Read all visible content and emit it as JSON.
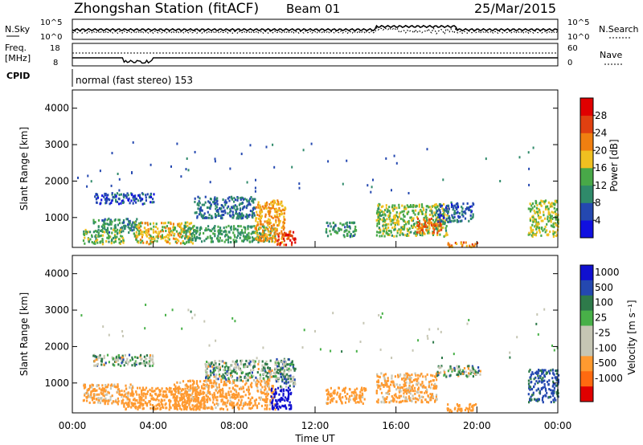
{
  "header": {
    "title": "Zhongshan Station (fitACF)",
    "beam": "Beam 01",
    "date": "25/Mar/2015"
  },
  "summary_panels": {
    "nsky_label": "N.Sky",
    "nsky_ticks": [
      "10^5",
      "10^0"
    ],
    "nsearch_label": "N.Search",
    "nsearch_ticks": [
      "10^5",
      "10^0"
    ],
    "freq_label_1": "Freq.",
    "freq_label_2": "[MHz]",
    "freq_ticks": [
      "18",
      "8"
    ],
    "nave_label": "Nave",
    "nave_ticks": [
      "60",
      "0"
    ],
    "cpid_label": "CPID",
    "cpid_text": "normal (fast stereo) 153"
  },
  "colors": {
    "power_scale": [
      "#1010e0",
      "#2448b0",
      "#2f8a6a",
      "#48a848",
      "#f0c020",
      "#f07f10",
      "#e04010",
      "#e00000"
    ],
    "velocity_scale": [
      "#e00000",
      "#ff6a10",
      "#ff9a30",
      "#c6c6b4",
      "#c6c6b4",
      "#48b048",
      "#2e7a4a",
      "#2448b0",
      "#1010d0"
    ]
  },
  "chart_data": [
    {
      "type": "heatmap",
      "panel": "power",
      "ylabel": "Slant Range [km]",
      "yticks": [
        "1000",
        "2000",
        "3000",
        "4000"
      ],
      "ylim": [
        180,
        4500
      ],
      "xlim": [
        0,
        24
      ],
      "colorbar_label": "Power [dB]",
      "colorbar_ticks": [
        "4",
        "8",
        "12",
        "16",
        "20",
        "24",
        "28"
      ],
      "regions": [
        {
          "t": [
            1.0,
            3.2
          ],
          "r": [
            620,
            1000
          ],
          "v": 10
        },
        {
          "t": [
            0.5,
            2.5
          ],
          "r": [
            300,
            700
          ],
          "v": 14
        },
        {
          "t": [
            3.0,
            6.0
          ],
          "r": [
            300,
            900
          ],
          "v": 18
        },
        {
          "t": [
            5.5,
            10.0
          ],
          "r": [
            350,
            800
          ],
          "v": 12
        },
        {
          "t": [
            6.0,
            9.0
          ],
          "r": [
            1000,
            1600
          ],
          "v": 8
        },
        {
          "t": [
            9.0,
            10.5
          ],
          "r": [
            350,
            1500
          ],
          "v": 20
        },
        {
          "t": [
            10.0,
            11.0
          ],
          "r": [
            280,
            650
          ],
          "v": 27
        },
        {
          "t": [
            1.0,
            4.0
          ],
          "r": [
            1400,
            1700
          ],
          "v": 6
        },
        {
          "t": [
            12.5,
            14.0
          ],
          "r": [
            500,
            900
          ],
          "v": 11
        },
        {
          "t": [
            15.0,
            18.5
          ],
          "r": [
            500,
            1400
          ],
          "v": 15
        },
        {
          "t": [
            17.0,
            18.2
          ],
          "r": [
            600,
            1000
          ],
          "v": 24
        },
        {
          "t": [
            18.0,
            19.8
          ],
          "r": [
            900,
            1450
          ],
          "v": 7
        },
        {
          "t": [
            18.5,
            20.0
          ],
          "r": [
            220,
            350
          ],
          "v": 22
        },
        {
          "t": [
            22.5,
            24.0
          ],
          "r": [
            500,
            1500
          ],
          "v": 16
        }
      ]
    },
    {
      "type": "heatmap",
      "panel": "velocity",
      "ylabel": "Slant Range [km]",
      "yticks": [
        "1000",
        "2000",
        "3000",
        "4000"
      ],
      "ylim": [
        180,
        4500
      ],
      "xlim": [
        0,
        24
      ],
      "xlabel": "Time UT",
      "xticks": [
        "00:00",
        "04:00",
        "08:00",
        "12:00",
        "16:00",
        "20:00",
        "00:00"
      ],
      "colorbar_label": "Velocity [m s⁻¹]",
      "colorbar_ticks": [
        "1000",
        "500",
        "100",
        "25",
        "-25",
        "-100",
        "-500",
        "-1000"
      ],
      "regions": [
        {
          "t": [
            0.5,
            3.0
          ],
          "r": [
            450,
            1000
          ],
          "v": -150
        },
        {
          "t": [
            2.5,
            6.5
          ],
          "r": [
            300,
            900
          ],
          "v": -300
        },
        {
          "t": [
            1.0,
            4.0
          ],
          "r": [
            1500,
            1800
          ],
          "v": 0
        },
        {
          "t": [
            6.5,
            10.5
          ],
          "r": [
            1100,
            1650
          ],
          "v": 0
        },
        {
          "t": [
            5.0,
            10.0
          ],
          "r": [
            300,
            1100
          ],
          "v": -200
        },
        {
          "t": [
            9.8,
            10.8
          ],
          "r": [
            300,
            900
          ],
          "v": 800
        },
        {
          "t": [
            10.0,
            11.0
          ],
          "r": [
            900,
            1700
          ],
          "v": 60
        },
        {
          "t": [
            12.5,
            14.5
          ],
          "r": [
            450,
            900
          ],
          "v": -200
        },
        {
          "t": [
            15.0,
            18.0
          ],
          "r": [
            500,
            1300
          ],
          "v": -150
        },
        {
          "t": [
            18.0,
            20.2
          ],
          "r": [
            1200,
            1500
          ],
          "v": 0
        },
        {
          "t": [
            18.5,
            20.0
          ],
          "r": [
            250,
            450
          ],
          "v": -250
        },
        {
          "t": [
            22.5,
            24.0
          ],
          "r": [
            500,
            1400
          ],
          "v": 150
        }
      ]
    }
  ]
}
